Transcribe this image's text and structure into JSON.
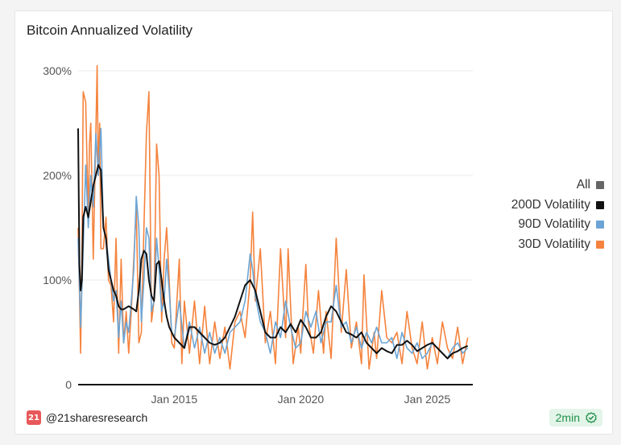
{
  "chart_data": {
    "type": "line",
    "title": "Bitcoin Annualized Volatility",
    "xlabel": "",
    "ylabel": "",
    "x_range": [
      2011.2,
      2026.8
    ],
    "ylim": [
      0,
      300
    ],
    "y_ticks": [
      {
        "value": 0,
        "label": "0"
      },
      {
        "value": 100,
        "label": "100%"
      },
      {
        "value": 200,
        "label": "200%"
      },
      {
        "value": 300,
        "label": "300%"
      }
    ],
    "x_ticks": [
      {
        "value": 2015.0,
        "label": "Jan 2015"
      },
      {
        "value": 2020.0,
        "label": "Jan 2020"
      },
      {
        "value": 2025.0,
        "label": "Jan 2025"
      }
    ],
    "grid": true,
    "legend_position": "right",
    "series": [
      {
        "name": "30D Volatility",
        "color": "#f5833d",
        "x": [
          2011.2,
          2011.3,
          2011.35,
          2011.4,
          2011.5,
          2011.6,
          2011.65,
          2011.7,
          2011.8,
          2011.9,
          2011.95,
          2012.0,
          2012.05,
          2012.1,
          2012.2,
          2012.3,
          2012.4,
          2012.5,
          2012.6,
          2012.7,
          2012.8,
          2012.9,
          2013.0,
          2013.1,
          2013.2,
          2013.3,
          2013.4,
          2013.5,
          2013.6,
          2013.7,
          2013.8,
          2013.9,
          2014.0,
          2014.1,
          2014.2,
          2014.3,
          2014.4,
          2014.5,
          2014.6,
          2014.7,
          2014.8,
          2014.9,
          2015.0,
          2015.2,
          2015.3,
          2015.4,
          2015.6,
          2015.8,
          2016.0,
          2016.2,
          2016.4,
          2016.6,
          2016.8,
          2017.0,
          2017.2,
          2017.4,
          2017.6,
          2017.8,
          2018.0,
          2018.1,
          2018.2,
          2018.4,
          2018.6,
          2018.8,
          2019.0,
          2019.2,
          2019.4,
          2019.5,
          2019.7,
          2019.9,
          2020.0,
          2020.1,
          2020.2,
          2020.3,
          2020.5,
          2020.7,
          2020.9,
          2021.0,
          2021.2,
          2021.4,
          2021.6,
          2021.8,
          2022.0,
          2022.2,
          2022.4,
          2022.5,
          2022.7,
          2022.9,
          2023.0,
          2023.2,
          2023.4,
          2023.6,
          2023.8,
          2024.0,
          2024.2,
          2024.4,
          2024.6,
          2024.8,
          2025.0,
          2025.2,
          2025.4,
          2025.6,
          2025.8,
          2026.0,
          2026.2,
          2026.4,
          2026.6
        ],
        "values": [
          150,
          30,
          120,
          280,
          270,
          160,
          230,
          250,
          120,
          240,
          310,
          200,
          250,
          130,
          130,
          160,
          100,
          95,
          60,
          140,
          30,
          120,
          40,
          70,
          30,
          70,
          120,
          170,
          40,
          50,
          150,
          240,
          280,
          60,
          80,
          230,
          200,
          60,
          120,
          150,
          100,
          40,
          35,
          120,
          20,
          80,
          30,
          80,
          20,
          75,
          20,
          60,
          25,
          55,
          15,
          60,
          70,
          45,
          100,
          165,
          80,
          130,
          40,
          70,
          20,
          130,
          45,
          130,
          20,
          55,
          30,
          75,
          115,
          60,
          30,
          90,
          30,
          70,
          25,
          140,
          50,
          110,
          35,
          60,
          20,
          105,
          15,
          50,
          25,
          90,
          45,
          40,
          50,
          20,
          70,
          35,
          20,
          60,
          15,
          45,
          20,
          60,
          35,
          25,
          55,
          20,
          45
        ]
      },
      {
        "name": "90D Volatility",
        "color": "#6ca5d5",
        "x": [
          2011.2,
          2011.3,
          2011.4,
          2011.5,
          2011.6,
          2011.7,
          2011.8,
          2011.9,
          2012.0,
          2012.1,
          2012.2,
          2012.3,
          2012.4,
          2012.5,
          2012.6,
          2012.7,
          2012.8,
          2012.9,
          2013.0,
          2013.1,
          2013.2,
          2013.3,
          2013.4,
          2013.5,
          2013.6,
          2013.7,
          2013.8,
          2013.9,
          2014.0,
          2014.1,
          2014.2,
          2014.3,
          2014.4,
          2014.5,
          2014.6,
          2014.7,
          2014.8,
          2014.9,
          2015.0,
          2015.2,
          2015.4,
          2015.6,
          2015.8,
          2016.0,
          2016.2,
          2016.4,
          2016.6,
          2016.8,
          2017.0,
          2017.2,
          2017.4,
          2017.6,
          2017.8,
          2018.0,
          2018.1,
          2018.2,
          2018.4,
          2018.6,
          2018.8,
          2019.0,
          2019.2,
          2019.4,
          2019.6,
          2019.8,
          2020.0,
          2020.2,
          2020.4,
          2020.6,
          2020.8,
          2021.0,
          2021.2,
          2021.4,
          2021.6,
          2021.8,
          2022.0,
          2022.2,
          2022.4,
          2022.6,
          2022.8,
          2023.0,
          2023.2,
          2023.4,
          2023.6,
          2023.8,
          2024.0,
          2024.2,
          2024.4,
          2024.6,
          2024.8,
          2025.0,
          2025.2,
          2025.4,
          2025.6,
          2025.8,
          2026.0,
          2026.2,
          2026.4,
          2026.6
        ],
        "values": [
          140,
          55,
          130,
          210,
          150,
          200,
          170,
          240,
          200,
          245,
          150,
          140,
          120,
          100,
          80,
          90,
          45,
          80,
          40,
          60,
          50,
          80,
          110,
          180,
          150,
          60,
          100,
          150,
          140,
          70,
          80,
          140,
          110,
          70,
          80,
          120,
          90,
          50,
          45,
          80,
          35,
          60,
          35,
          55,
          30,
          50,
          30,
          45,
          30,
          50,
          55,
          60,
          80,
          125,
          110,
          85,
          60,
          50,
          30,
          60,
          45,
          80,
          55,
          35,
          40,
          70,
          55,
          70,
          40,
          60,
          60,
          95,
          55,
          60,
          40,
          55,
          35,
          50,
          40,
          55,
          40,
          40,
          45,
          25,
          50,
          35,
          30,
          40,
          25,
          30,
          40,
          35,
          30,
          25,
          35,
          40,
          30,
          35
        ]
      },
      {
        "name": "200D Volatility",
        "color": "#111111",
        "x": [
          2011.2,
          2011.25,
          2011.3,
          2011.35,
          2011.4,
          2011.5,
          2011.6,
          2011.7,
          2011.8,
          2011.9,
          2012.0,
          2012.1,
          2012.2,
          2012.3,
          2012.4,
          2012.5,
          2012.6,
          2012.7,
          2012.8,
          2012.9,
          2013.0,
          2013.2,
          2013.4,
          2013.5,
          2013.6,
          2013.7,
          2013.8,
          2013.9,
          2014.0,
          2014.1,
          2014.2,
          2014.3,
          2014.4,
          2014.5,
          2014.6,
          2014.7,
          2014.8,
          2014.9,
          2015.0,
          2015.2,
          2015.4,
          2015.6,
          2015.8,
          2016.0,
          2016.2,
          2016.4,
          2016.6,
          2016.8,
          2017.0,
          2017.2,
          2017.4,
          2017.6,
          2017.8,
          2018.0,
          2018.2,
          2018.4,
          2018.6,
          2018.8,
          2019.0,
          2019.2,
          2019.4,
          2019.6,
          2019.8,
          2020.0,
          2020.2,
          2020.4,
          2020.6,
          2020.8,
          2021.0,
          2021.2,
          2021.4,
          2021.6,
          2021.8,
          2022.0,
          2022.2,
          2022.4,
          2022.6,
          2022.8,
          2023.0,
          2023.2,
          2023.4,
          2023.6,
          2023.8,
          2024.0,
          2024.2,
          2024.4,
          2024.6,
          2024.8,
          2025.0,
          2025.2,
          2025.4,
          2025.6,
          2025.8,
          2026.0,
          2026.2,
          2026.4,
          2026.6
        ],
        "values": [
          245,
          115,
          90,
          100,
          160,
          170,
          160,
          175,
          190,
          200,
          210,
          205,
          150,
          140,
          110,
          100,
          90,
          85,
          75,
          72,
          72,
          75,
          72,
          70,
          90,
          120,
          128,
          125,
          100,
          85,
          80,
          115,
          118,
          100,
          80,
          65,
          55,
          50,
          45,
          40,
          35,
          55,
          55,
          50,
          45,
          40,
          38,
          40,
          45,
          55,
          65,
          80,
          95,
          100,
          90,
          70,
          50,
          45,
          45,
          55,
          50,
          58,
          50,
          62,
          55,
          45,
          45,
          50,
          65,
          75,
          70,
          60,
          50,
          48,
          45,
          50,
          40,
          35,
          30,
          35,
          32,
          30,
          38,
          38,
          42,
          38,
          32,
          35,
          38,
          40,
          35,
          30,
          25,
          30,
          32,
          35,
          37
        ]
      }
    ]
  },
  "legend": {
    "all_label": "All",
    "all_color": "#666666",
    "items": [
      {
        "label": "200D Volatility",
        "color": "#111111"
      },
      {
        "label": "90D Volatility",
        "color": "#6ca5d5"
      },
      {
        "label": "30D Volatility",
        "color": "#f5833d"
      }
    ]
  },
  "footer": {
    "logo_text": "21",
    "handle": "@21sharesresearch",
    "badge_text": "2min"
  }
}
